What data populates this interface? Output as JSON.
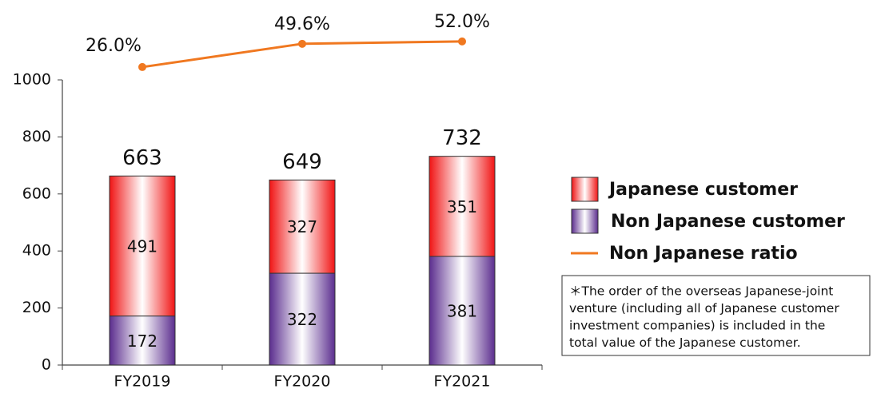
{
  "chart_data": {
    "type": "bar",
    "stacked": true,
    "categories": [
      "FY2019",
      "FY2020",
      "FY2021"
    ],
    "series": [
      {
        "name": "Non Japanese customer",
        "color": "#5b2d8e",
        "values": [
          172,
          322,
          381
        ]
      },
      {
        "name": "Japanese customer",
        "color": "#f01414",
        "values": [
          491,
          327,
          351
        ]
      },
      {
        "name": "Non Japanese ratio",
        "color": "#f07820",
        "type": "line",
        "axis": "y2",
        "values": [
          26.0,
          49.6,
          52.0
        ],
        "value_labels": [
          "26.0%",
          "49.6%",
          "52.0%"
        ]
      }
    ],
    "totals": [
      663,
      649,
      732
    ],
    "ylim": [
      0,
      1000
    ],
    "yticks": [
      0,
      200,
      400,
      600,
      800,
      1000
    ],
    "y2lim": [
      0,
      60
    ],
    "legend_order": [
      1,
      0,
      2
    ],
    "note": [
      "＊The order of the overseas Japanese-joint",
      "venture (including all of Japanese customer",
      "investment companies) is included in the",
      "total value of the Japanese customer."
    ]
  }
}
